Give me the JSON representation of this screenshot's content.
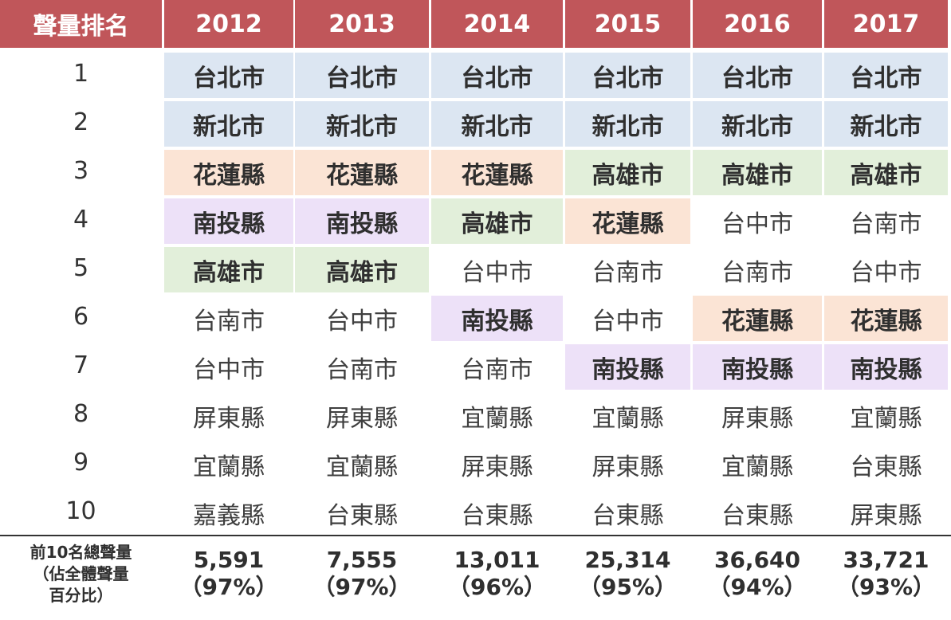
{
  "header": {
    "rank_label": "聲量排名",
    "years": [
      "2012",
      "2013",
      "2014",
      "2015",
      "2016",
      "2017"
    ]
  },
  "colors": {
    "header_bg": "#c0565a",
    "台北市": "#dce6f2",
    "新北市": "#dce6f2",
    "花蓮縣": "#fbe4d5",
    "高雄市": "#e2efda",
    "南投縣": "#ede1f8"
  },
  "rows": [
    {
      "rank": "1",
      "cells": [
        "台北市",
        "台北市",
        "台北市",
        "台北市",
        "台北市",
        "台北市"
      ]
    },
    {
      "rank": "2",
      "cells": [
        "新北市",
        "新北市",
        "新北市",
        "新北市",
        "新北市",
        "新北市"
      ]
    },
    {
      "rank": "3",
      "cells": [
        "花蓮縣",
        "花蓮縣",
        "花蓮縣",
        "高雄市",
        "高雄市",
        "高雄市"
      ]
    },
    {
      "rank": "4",
      "cells": [
        "南投縣",
        "南投縣",
        "高雄市",
        "花蓮縣",
        "台中市",
        "台南市"
      ]
    },
    {
      "rank": "5",
      "cells": [
        "高雄市",
        "高雄市",
        "台中市",
        "台南市",
        "台南市",
        "台中市"
      ]
    },
    {
      "rank": "6",
      "cells": [
        "台南市",
        "台中市",
        "南投縣",
        "台中市",
        "花蓮縣",
        "花蓮縣"
      ]
    },
    {
      "rank": "7",
      "cells": [
        "台中市",
        "台南市",
        "台南市",
        "南投縣",
        "南投縣",
        "南投縣"
      ]
    },
    {
      "rank": "8",
      "cells": [
        "屏東縣",
        "屏東縣",
        "宜蘭縣",
        "宜蘭縣",
        "屏東縣",
        "宜蘭縣"
      ]
    },
    {
      "rank": "9",
      "cells": [
        "宜蘭縣",
        "宜蘭縣",
        "屏東縣",
        "屏東縣",
        "宜蘭縣",
        "台東縣"
      ]
    },
    {
      "rank": "10",
      "cells": [
        "嘉義縣",
        "台東縣",
        "台東縣",
        "台東縣",
        "台東縣",
        "屏東縣"
      ]
    }
  ],
  "footer": {
    "label_lines": [
      "前10名總聲量",
      "（佔全體聲量",
      "百分比）"
    ],
    "totals": [
      "5,591",
      "7,555",
      "13,011",
      "25,314",
      "36,640",
      "33,721"
    ],
    "percents": [
      "（97%）",
      "（97%）",
      "（96%）",
      "（95%）",
      "（94%）",
      "（93%）"
    ]
  }
}
